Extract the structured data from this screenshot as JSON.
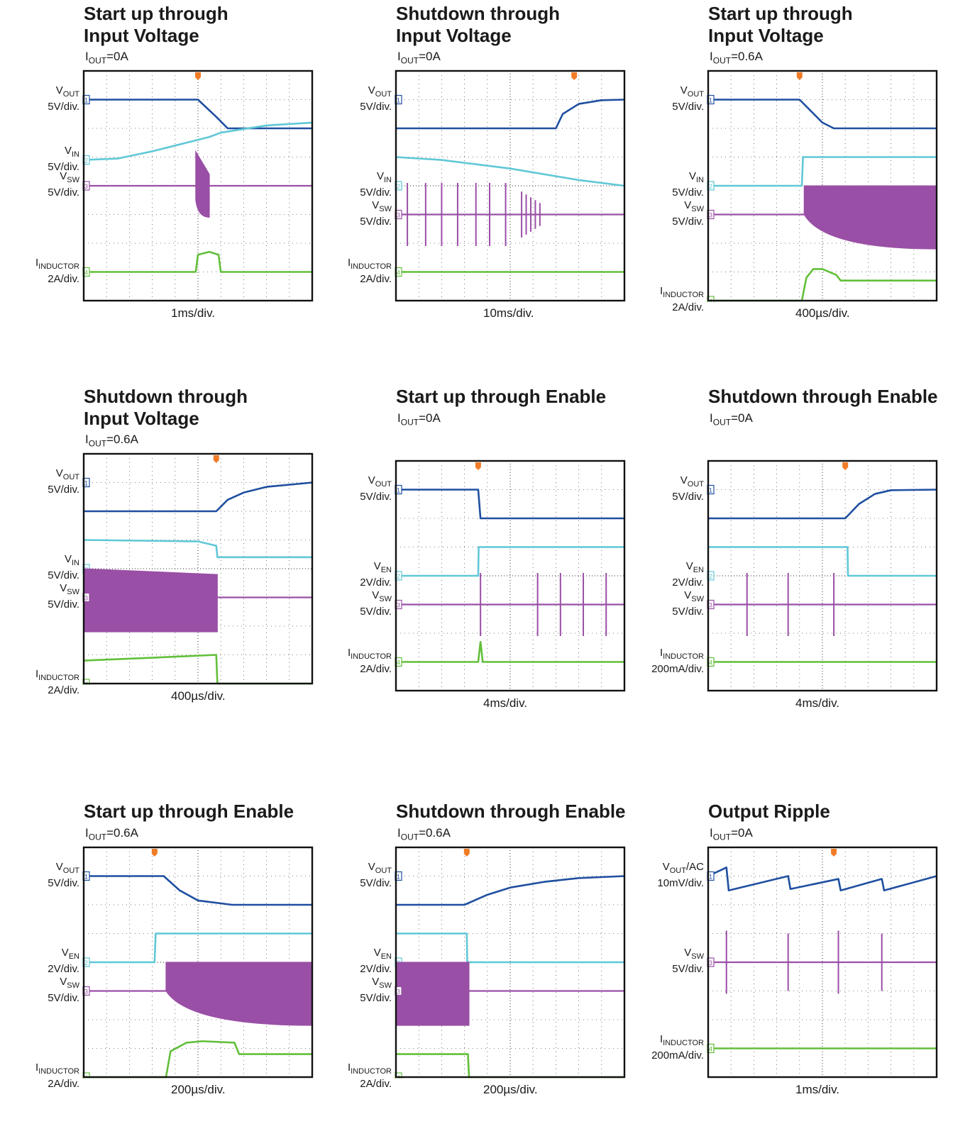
{
  "colors": {
    "vout": "#1f4fa0",
    "vin": "#5fc8d6",
    "vsw": "#9a4fa6",
    "iind": "#62bf3a",
    "trigger": "#f07c28",
    "grid": "#555555",
    "frame": "#111111"
  },
  "icons": {
    "trigger_marker": "trigger-marker-icon",
    "channel_marker": "channel-number-icon"
  },
  "chart_data": [
    {
      "type": "line",
      "title": "Start up through",
      "title2": "Input Voltage",
      "iout_label": "I",
      "iout_sub": "OUT",
      "iout_value": "=0A",
      "time_div": "1ms/div.",
      "trigger_div": 5,
      "channels": [
        {
          "name": "V",
          "sub": "OUT",
          "scale": "5V/div.",
          "num": "1",
          "ref": 1,
          "color": "vout",
          "kind": "line",
          "x": [
            0,
            5,
            5.8,
            6.3,
            10
          ],
          "y": [
            1,
            1,
            1.6,
            2,
            2
          ]
        },
        {
          "name": "V",
          "sub": "IN",
          "scale": "5V/div.",
          "num": "2",
          "ref": 3.1,
          "color": "vin",
          "kind": "line",
          "x": [
            0,
            1.5,
            3,
            4.5,
            5.5,
            6,
            8,
            10
          ],
          "y": [
            3.1,
            3.05,
            2.8,
            2.5,
            2.3,
            2.15,
            1.9,
            1.8
          ]
        },
        {
          "name": "V",
          "sub": "SW",
          "scale": "5V/div.",
          "num": "3",
          "ref": 4,
          "color": "vsw",
          "kind": "burst",
          "x": [
            4.9,
            5.5
          ],
          "top": [
            2.8,
            3.6
          ],
          "bottom": [
            4.5,
            5.1
          ]
        },
        {
          "name": "I",
          "sub": "INDUCTOR",
          "scale": "2A/div.",
          "num": "4",
          "ref": 7,
          "color": "iind",
          "kind": "line",
          "x": [
            0,
            4.9,
            5,
            5.5,
            5.9,
            6,
            10
          ],
          "y": [
            7,
            7,
            6.4,
            6.3,
            6.4,
            7,
            7
          ]
        }
      ]
    },
    {
      "type": "line",
      "title": "Shutdown through",
      "title2": "Input Voltage",
      "iout_label": "I",
      "iout_sub": "OUT",
      "iout_value": "=0A",
      "time_div": "10ms/div.",
      "trigger_div": 7.8,
      "channels": [
        {
          "name": "V",
          "sub": "OUT",
          "scale": "5V/div.",
          "num": "1",
          "ref": 1,
          "color": "vout",
          "kind": "line",
          "x": [
            0,
            7,
            7.3,
            8,
            9,
            10
          ],
          "y": [
            2,
            2,
            1.5,
            1.15,
            1.02,
            1
          ]
        },
        {
          "name": "V",
          "sub": "IN",
          "scale": "5V/div.",
          "num": "2",
          "ref": 4,
          "color": "vin",
          "kind": "line",
          "x": [
            0,
            2,
            5,
            8,
            10
          ],
          "y": [
            3,
            3.1,
            3.4,
            3.8,
            4
          ]
        },
        {
          "name": "V",
          "sub": "SW",
          "scale": "5V/div.",
          "num": "3",
          "ref": 5,
          "color": "vsw",
          "kind": "spikes",
          "x": [
            0.5,
            1.3,
            2,
            2.7,
            3.5,
            4.1,
            4.8,
            5.5,
            5.7,
            5.9,
            6.1,
            6.3
          ],
          "amp": [
            1.1,
            1.1,
            1.1,
            1.1,
            1.1,
            1.1,
            1.1,
            0.8,
            0.7,
            0.6,
            0.5,
            0.4
          ]
        },
        {
          "name": "I",
          "sub": "INDUCTOR",
          "scale": "2A/div.",
          "num": "4",
          "ref": 7,
          "color": "iind",
          "kind": "line",
          "x": [
            0,
            10
          ],
          "y": [
            7,
            7
          ]
        }
      ]
    },
    {
      "type": "line",
      "title": "Start up through",
      "title2": "Input Voltage",
      "iout_label": "I",
      "iout_sub": "OUT",
      "iout_value": "=0.6A",
      "time_div": "400µs/div.",
      "trigger_div": 4,
      "channels": [
        {
          "name": "V",
          "sub": "OUT",
          "scale": "5V/div.",
          "num": "1",
          "ref": 1,
          "color": "vout",
          "kind": "line",
          "x": [
            0,
            4,
            4.5,
            5,
            5.5,
            10
          ],
          "y": [
            1,
            1,
            1.4,
            1.8,
            2,
            2
          ]
        },
        {
          "name": "V",
          "sub": "IN",
          "scale": "5V/div.",
          "num": "2",
          "ref": 4,
          "color": "vin",
          "kind": "line",
          "x": [
            0,
            4.1,
            4.15,
            10
          ],
          "y": [
            4,
            4,
            3,
            3
          ]
        },
        {
          "name": "V",
          "sub": "SW",
          "scale": "5V/div.",
          "num": "3",
          "ref": 5,
          "color": "vsw",
          "kind": "burst",
          "x": [
            4.2,
            10
          ],
          "top": [
            4,
            4
          ],
          "bottom": [
            5,
            6.2
          ]
        },
        {
          "name": "I",
          "sub": "INDUCTOR",
          "scale": "2A/div.",
          "num": "4",
          "ref": 8,
          "color": "iind",
          "kind": "line",
          "x": [
            0,
            4.1,
            4.3,
            4.6,
            5,
            5.6,
            5.8,
            10
          ],
          "y": [
            8,
            8,
            7.2,
            6.9,
            6.9,
            7.1,
            7.3,
            7.3
          ]
        }
      ]
    },
    {
      "type": "line",
      "title": "Shutdown through",
      "title2": "Input Voltage",
      "iout_label": "I",
      "iout_sub": "OUT",
      "iout_value": "=0.6A",
      "time_div": "400µs/div.",
      "trigger_div": 5.8,
      "channels": [
        {
          "name": "V",
          "sub": "OUT",
          "scale": "5V/div.",
          "num": "1",
          "ref": 1,
          "color": "vout",
          "kind": "line",
          "x": [
            0,
            5.8,
            6.3,
            7,
            8,
            10
          ],
          "y": [
            2,
            2,
            1.6,
            1.35,
            1.15,
            1
          ]
        },
        {
          "name": "V",
          "sub": "IN",
          "scale": "5V/div.",
          "num": "2",
          "ref": 4,
          "color": "vin",
          "kind": "line",
          "x": [
            0,
            5,
            5.8,
            5.85,
            10
          ],
          "y": [
            3,
            3.05,
            3.2,
            3.6,
            3.6
          ]
        },
        {
          "name": "V",
          "sub": "SW",
          "scale": "5V/div.",
          "num": "3",
          "ref": 5,
          "color": "vsw",
          "kind": "burst",
          "x": [
            0,
            5.85
          ],
          "top": [
            4,
            4.2
          ],
          "bottom": [
            6.2,
            6.2
          ]
        },
        {
          "name": "I",
          "sub": "INDUCTOR",
          "scale": "2A/div.",
          "num": "4",
          "ref": 8,
          "color": "iind",
          "kind": "line",
          "x": [
            0,
            3,
            5.8,
            5.85,
            10
          ],
          "y": [
            7.2,
            7.1,
            7.0,
            8,
            8
          ]
        }
      ]
    },
    {
      "type": "line",
      "title": "Start up through Enable",
      "title2": "",
      "iout_label": "I",
      "iout_sub": "OUT",
      "iout_value": "=0A",
      "time_div": "4ms/div.",
      "trigger_div": 3.6,
      "channels": [
        {
          "name": "V",
          "sub": "OUT",
          "scale": "5V/div.",
          "num": "1",
          "ref": 1,
          "color": "vout",
          "kind": "line",
          "x": [
            0,
            3.6,
            3.7,
            10
          ],
          "y": [
            1,
            1,
            2,
            2
          ]
        },
        {
          "name": "V",
          "sub": "EN",
          "scale": "2V/div.",
          "num": "2",
          "ref": 4,
          "color": "vin",
          "kind": "line",
          "x": [
            0,
            3.6,
            3.62,
            10
          ],
          "y": [
            4,
            4,
            3,
            3
          ]
        },
        {
          "name": "V",
          "sub": "SW",
          "scale": "5V/div.",
          "num": "3",
          "ref": 5,
          "color": "vsw",
          "kind": "spikes",
          "x": [
            3.7,
            6.2,
            7.2,
            8.2,
            9.2
          ],
          "amp": [
            1.1,
            1.1,
            1.1,
            1.1,
            1.1
          ]
        },
        {
          "name": "I",
          "sub": "INDUCTOR",
          "scale": "2A/div.",
          "num": "4",
          "ref": 7,
          "color": "iind",
          "kind": "line",
          "x": [
            0,
            3.6,
            3.7,
            3.8,
            10
          ],
          "y": [
            7,
            7,
            6.3,
            7,
            7
          ]
        }
      ]
    },
    {
      "type": "line",
      "title": "Shutdown through Enable",
      "title2": "",
      "iout_label": "I",
      "iout_sub": "OUT",
      "iout_value": "=0A",
      "time_div": "4ms/div.",
      "trigger_div": 6,
      "channels": [
        {
          "name": "V",
          "sub": "OUT",
          "scale": "5V/div.",
          "num": "1",
          "ref": 1,
          "color": "vout",
          "kind": "line",
          "x": [
            0,
            6,
            6.6,
            7.3,
            8,
            10
          ],
          "y": [
            2,
            2,
            1.5,
            1.15,
            1.02,
            1
          ]
        },
        {
          "name": "V",
          "sub": "EN",
          "scale": "2V/div.",
          "num": "2",
          "ref": 4,
          "color": "vin",
          "kind": "line",
          "x": [
            0,
            6.1,
            6.12,
            10
          ],
          "y": [
            3,
            3,
            4,
            4
          ]
        },
        {
          "name": "V",
          "sub": "SW",
          "scale": "5V/div.",
          "num": "3",
          "ref": 5,
          "color": "vsw",
          "kind": "spikes",
          "x": [
            1.7,
            3.5,
            5.5
          ],
          "amp": [
            1.1,
            1.1,
            1.1
          ]
        },
        {
          "name": "I",
          "sub": "INDUCTOR",
          "scale": "200mA/div.",
          "num": "4",
          "ref": 7,
          "color": "iind",
          "kind": "line",
          "x": [
            0,
            10
          ],
          "y": [
            7,
            7
          ]
        }
      ]
    },
    {
      "type": "line",
      "title": "Start up through Enable",
      "title2": "",
      "iout_label": "I",
      "iout_sub": "OUT",
      "iout_value": "=0.6A",
      "time_div": "200µs/div.",
      "trigger_div": 3.1,
      "channels": [
        {
          "name": "V",
          "sub": "OUT",
          "scale": "5V/div.",
          "num": "1",
          "ref": 1,
          "color": "vout",
          "kind": "line",
          "x": [
            0,
            3.5,
            4.2,
            5,
            6.5,
            10
          ],
          "y": [
            1,
            1,
            1.5,
            1.85,
            2,
            2
          ]
        },
        {
          "name": "V",
          "sub": "EN",
          "scale": "2V/div.",
          "num": "2",
          "ref": 4,
          "color": "vin",
          "kind": "line",
          "x": [
            0,
            3.1,
            3.15,
            10
          ],
          "y": [
            4,
            4,
            3,
            3
          ]
        },
        {
          "name": "V",
          "sub": "SW",
          "scale": "5V/div.",
          "num": "3",
          "ref": 5,
          "color": "vsw",
          "kind": "burst",
          "x": [
            3.6,
            10
          ],
          "top": [
            4,
            4
          ],
          "bottom": [
            5,
            6.2
          ]
        },
        {
          "name": "I",
          "sub": "INDUCTOR",
          "scale": "2A/div.",
          "num": "4",
          "ref": 8,
          "color": "iind",
          "kind": "line",
          "x": [
            0,
            3.6,
            3.8,
            4.5,
            5.2,
            6.6,
            6.8,
            10
          ],
          "y": [
            8,
            8,
            7.1,
            6.8,
            6.75,
            6.8,
            7.2,
            7.2
          ]
        }
      ]
    },
    {
      "type": "line",
      "title": "Shutdown through Enable",
      "title2": "",
      "iout_label": "I",
      "iout_sub": "OUT",
      "iout_value": "=0.6A",
      "time_div": "200µs/div.",
      "trigger_div": 3.1,
      "channels": [
        {
          "name": "V",
          "sub": "OUT",
          "scale": "5V/div.",
          "num": "1",
          "ref": 1,
          "color": "vout",
          "kind": "line",
          "x": [
            0,
            3,
            4,
            5,
            6.5,
            8,
            10
          ],
          "y": [
            2,
            2,
            1.65,
            1.4,
            1.2,
            1.07,
            1
          ]
        },
        {
          "name": "V",
          "sub": "EN",
          "scale": "2V/div.",
          "num": "2",
          "ref": 4,
          "color": "vin",
          "kind": "line",
          "x": [
            0,
            3.1,
            3.12,
            10
          ],
          "y": [
            3,
            3,
            4,
            4
          ]
        },
        {
          "name": "V",
          "sub": "SW",
          "scale": "5V/div.",
          "num": "3",
          "ref": 5,
          "color": "vsw",
          "kind": "burst",
          "x": [
            0,
            3.2
          ],
          "top": [
            4,
            4
          ],
          "bottom": [
            6.2,
            6.2
          ]
        },
        {
          "name": "I",
          "sub": "INDUCTOR",
          "scale": "2A/div.",
          "num": "4",
          "ref": 8,
          "color": "iind",
          "kind": "line",
          "x": [
            0,
            3.15,
            3.2,
            10
          ],
          "y": [
            7.2,
            7.2,
            8,
            8
          ]
        }
      ]
    },
    {
      "type": "line",
      "title": "Output Ripple",
      "title2": "",
      "iout_label": "I",
      "iout_sub": "OUT",
      "iout_value": "=0A",
      "time_div": "1ms/div.",
      "trigger_div": 5.5,
      "channels": [
        {
          "name": "V",
          "sub": "OUT",
          "extra": "/AC",
          "scale": "10mV/div.",
          "num": "1",
          "ref": 1,
          "color": "vout",
          "kind": "sawtooth",
          "x": [
            0,
            0.8,
            0.9,
            3.5,
            3.6,
            5.7,
            5.8,
            7.6,
            7.7,
            10
          ],
          "y": [
            1,
            0.7,
            1.5,
            1.0,
            1.45,
            1.1,
            1.5,
            1.1,
            1.5,
            1.0
          ]
        },
        {
          "name": "V",
          "sub": "SW",
          "scale": "5V/div.",
          "num": "3",
          "ref": 4,
          "color": "vsw",
          "kind": "spikes",
          "x": [
            0.8,
            3.5,
            5.7,
            7.6
          ],
          "amp": [
            1.1,
            1.0,
            1.1,
            1.0
          ]
        },
        {
          "name": "I",
          "sub": "INDUCTOR",
          "scale": "200mA/div.",
          "num": "4",
          "ref": 7,
          "color": "iind",
          "kind": "line",
          "x": [
            0,
            10
          ],
          "y": [
            7,
            7
          ]
        }
      ]
    }
  ]
}
